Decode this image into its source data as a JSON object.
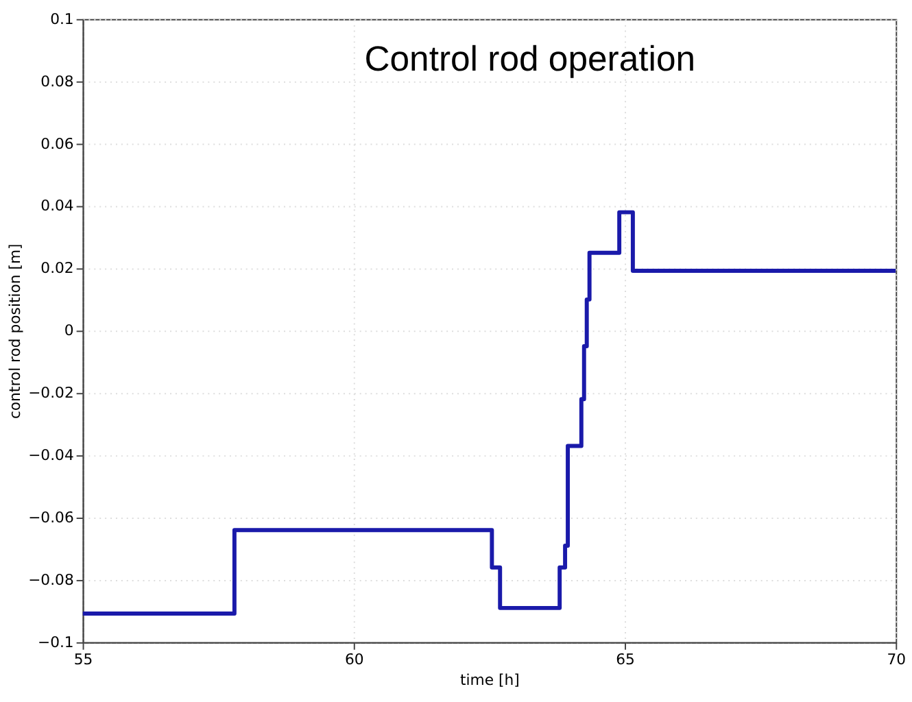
{
  "chart_data": {
    "type": "step",
    "title": "Control rod operation",
    "xlabel": "time [h]",
    "ylabel": "control rod position [m]",
    "x": [
      55,
      57.8,
      62.55,
      62.7,
      63.8,
      63.9,
      63.95,
      64.2,
      64.25,
      64.3,
      64.35,
      64.9,
      65.15,
      70
    ],
    "series": [
      {
        "color": "#1a1aaa",
        "values": [
          -0.0908,
          -0.064,
          -0.076,
          -0.089,
          -0.076,
          -0.069,
          -0.037,
          -0.022,
          -0.005,
          0.01,
          0.025,
          0.038,
          0.0192,
          0.0192
        ]
      }
    ],
    "xlim": [
      55,
      70
    ],
    "xticks": [
      55,
      60,
      65,
      70
    ],
    "ylim": [
      -0.1,
      0.1
    ],
    "yticks": [
      -0.1,
      -0.08,
      -0.06,
      -0.04,
      -0.02,
      0,
      0.02,
      0.04,
      0.06,
      0.08,
      0.1
    ],
    "grid": true
  }
}
